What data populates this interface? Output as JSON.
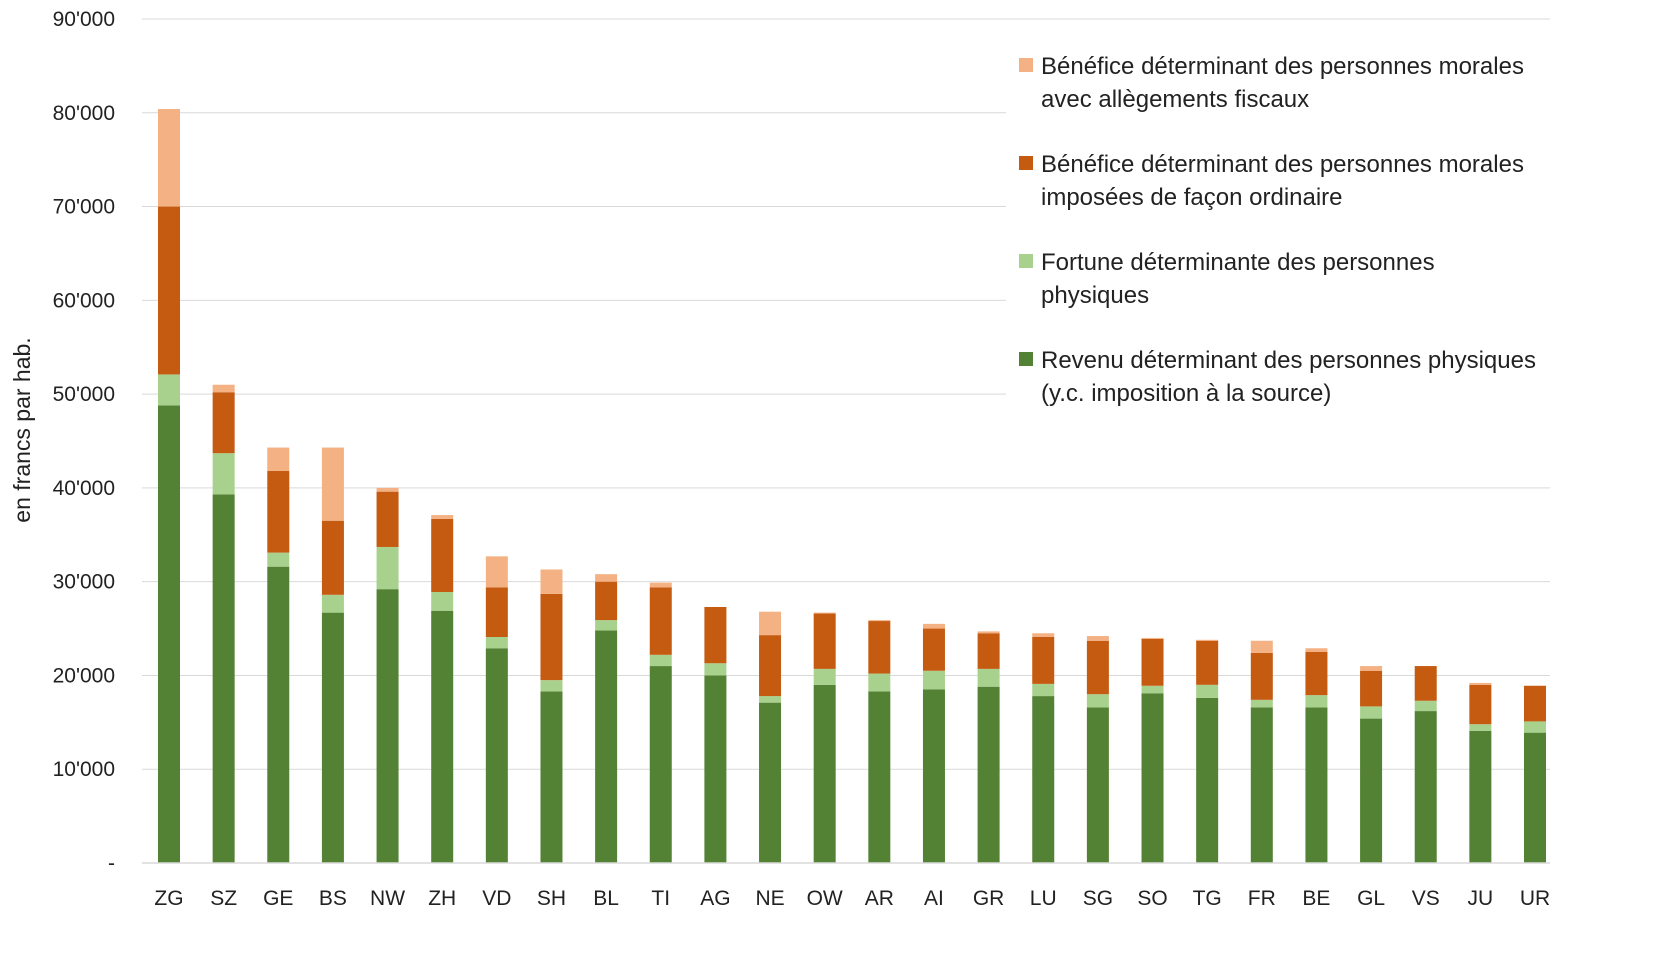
{
  "chart_data": {
    "type": "bar",
    "stacked": true,
    "title": "",
    "xlabel": "",
    "ylabel": "en francs par hab.",
    "ylim": [
      0,
      90000
    ],
    "yticks": [
      0,
      10000,
      20000,
      30000,
      40000,
      50000,
      60000,
      70000,
      80000,
      90000
    ],
    "ytick_labels": [
      "-",
      "10'000",
      "20'000",
      "30'000",
      "40'000",
      "50'000",
      "60'000",
      "70'000",
      "80'000",
      "90'000"
    ],
    "grid": true,
    "legend_position": "top-right",
    "categories": [
      "ZG",
      "SZ",
      "GE",
      "BS",
      "NW",
      "ZH",
      "VD",
      "SH",
      "BL",
      "TI",
      "AG",
      "NE",
      "OW",
      "AR",
      "AI",
      "GR",
      "LU",
      "SG",
      "SO",
      "TG",
      "FR",
      "BE",
      "GL",
      "VS",
      "JU",
      "UR"
    ],
    "series": [
      {
        "name": "Revenu déterminant des personnes physiques (y.c. imposition à la source)",
        "color": "#548235",
        "values": [
          48800,
          39300,
          31600,
          26700,
          29200,
          26900,
          22900,
          18300,
          24800,
          21000,
          20000,
          17100,
          19000,
          18300,
          18500,
          18800,
          17800,
          16600,
          18100,
          17600,
          16600,
          16600,
          15400,
          16200,
          14100,
          13900
        ]
      },
      {
        "name": "Fortune déterminante des personnes physiques",
        "color": "#a9d18e",
        "values": [
          3300,
          4400,
          1500,
          1900,
          4500,
          2000,
          1200,
          1200,
          1100,
          1200,
          1300,
          700,
          1700,
          1900,
          2000,
          1900,
          1300,
          1400,
          800,
          1400,
          800,
          1300,
          1300,
          1100,
          700,
          1200
        ]
      },
      {
        "name": "Bénéfice déterminant des personnes morales imposées de façon ordinaire",
        "color": "#c55a11",
        "values": [
          17900,
          6500,
          8700,
          7900,
          5900,
          7800,
          5300,
          9200,
          4100,
          7200,
          6000,
          6500,
          5900,
          5600,
          4500,
          3800,
          5000,
          5700,
          5000,
          4700,
          5000,
          4600,
          3800,
          3700,
          4200,
          3800
        ]
      },
      {
        "name": "Bénéfice déterminant des personnes morales avec allègements fiscaux",
        "color": "#f4b183",
        "values": [
          10400,
          800,
          2500,
          7800,
          400,
          400,
          3300,
          2600,
          800,
          500,
          0,
          2500,
          100,
          100,
          500,
          200,
          400,
          500,
          100,
          100,
          1300,
          400,
          500,
          0,
          200,
          0
        ]
      }
    ],
    "legend_order": [
      3,
      2,
      1,
      0
    ],
    "legend_lines": [
      [
        "Bénéfice déterminant des personnes morales",
        "avec allègements fiscaux"
      ],
      [
        "Bénéfice déterminant des personnes morales",
        "imposées de façon ordinaire"
      ],
      [
        "Fortune déterminante des personnes",
        "physiques"
      ],
      [
        "Revenu déterminant des personnes physiques",
        "(y.c. imposition à la source)"
      ]
    ]
  }
}
